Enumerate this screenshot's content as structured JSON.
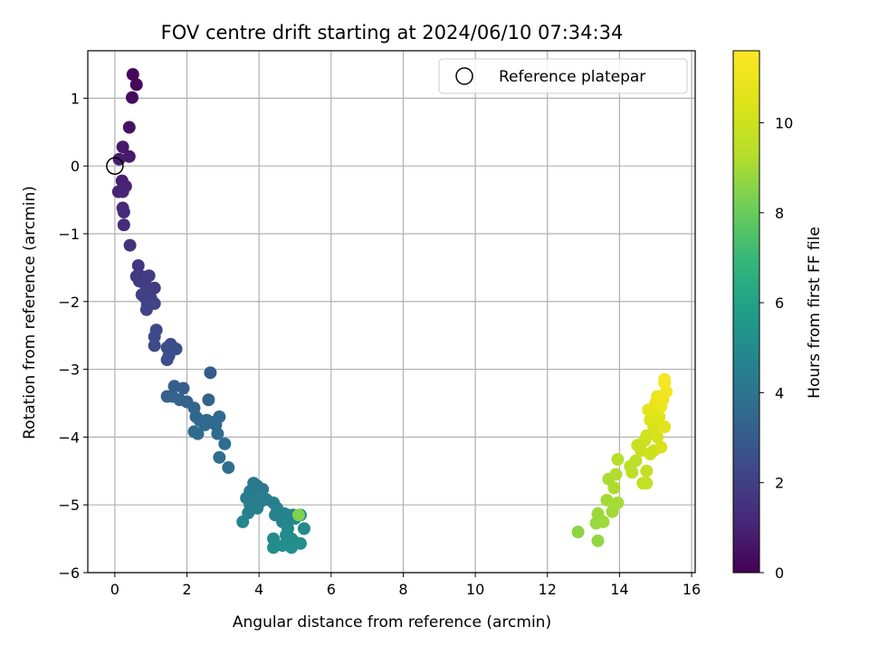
{
  "chart_data": {
    "type": "scatter",
    "title": "FOV centre drift starting at 2024/06/10 07:34:34",
    "xlabel": "Angular distance from reference (arcmin)",
    "ylabel": "Rotation from reference (arcmin)",
    "xlim": [
      -0.75,
      16.1
    ],
    "ylim": [
      -6,
      1.7
    ],
    "xticks": [
      0,
      2,
      4,
      6,
      8,
      10,
      12,
      14,
      16
    ],
    "yticks": [
      -6,
      -5,
      -4,
      -3,
      -2,
      -1,
      0,
      1
    ],
    "xtick_labels": [
      "0",
      "2",
      "4",
      "6",
      "8",
      "10",
      "12",
      "14",
      "16"
    ],
    "ytick_labels": [
      "−6",
      "−5",
      "−4",
      "−3",
      "−2",
      "−1",
      "0",
      "1"
    ],
    "grid": true,
    "legend": {
      "position": "top-right",
      "label": "Reference platepar",
      "marker": "open-circle"
    },
    "reference_point": {
      "x": 0,
      "y": 0
    },
    "colorbar": {
      "label": "Hours from first FF file",
      "colormap": "viridis",
      "range": [
        0,
        11.6
      ],
      "ticks": [
        0,
        2,
        4,
        6,
        8,
        10
      ],
      "tick_labels": [
        "0",
        "2",
        "4",
        "6",
        "8",
        "10"
      ]
    },
    "points_xyc": [
      [
        0.5,
        1.35,
        0.15
      ],
      [
        0.6,
        1.2,
        0.2
      ],
      [
        0.48,
        1.01,
        0.3
      ],
      [
        0.4,
        0.57,
        0.5
      ],
      [
        0.22,
        0.28,
        0.7
      ],
      [
        0.4,
        0.14,
        0.75
      ],
      [
        0.12,
        0.1,
        0.8
      ],
      [
        0.2,
        -0.22,
        0.9
      ],
      [
        0.3,
        -0.3,
        1.0
      ],
      [
        0.1,
        -0.38,
        1.05
      ],
      [
        0.22,
        -0.38,
        1.1
      ],
      [
        0.22,
        -0.62,
        1.15
      ],
      [
        0.25,
        -0.68,
        1.2
      ],
      [
        0.25,
        -0.87,
        1.3
      ],
      [
        0.42,
        -1.17,
        1.5
      ],
      [
        0.65,
        -1.47,
        1.7
      ],
      [
        0.6,
        -1.63,
        1.75
      ],
      [
        0.75,
        -1.63,
        1.8
      ],
      [
        0.68,
        -1.7,
        1.8
      ],
      [
        0.95,
        -1.62,
        1.85
      ],
      [
        0.85,
        -1.75,
        1.9
      ],
      [
        1.1,
        -1.8,
        1.9
      ],
      [
        0.9,
        -1.8,
        1.95
      ],
      [
        0.75,
        -1.9,
        2.0
      ],
      [
        0.85,
        -1.95,
        2.0
      ],
      [
        1.0,
        -1.95,
        2.05
      ],
      [
        0.9,
        -2.05,
        2.1
      ],
      [
        1.1,
        -2.03,
        2.1
      ],
      [
        0.88,
        -2.12,
        2.15
      ],
      [
        1.15,
        -2.42,
        2.3
      ],
      [
        1.1,
        -2.52,
        2.35
      ],
      [
        1.1,
        -2.65,
        2.4
      ],
      [
        1.55,
        -2.63,
        2.45
      ],
      [
        1.45,
        -2.68,
        2.45
      ],
      [
        1.7,
        -2.7,
        2.5
      ],
      [
        1.5,
        -2.8,
        2.55
      ],
      [
        1.45,
        -2.86,
        2.6
      ],
      [
        2.65,
        -3.05,
        3.0
      ],
      [
        1.65,
        -3.25,
        3.1
      ],
      [
        1.9,
        -3.28,
        3.1
      ],
      [
        2.0,
        -3.48,
        3.2
      ],
      [
        1.45,
        -3.4,
        3.2
      ],
      [
        1.6,
        -3.4,
        3.25
      ],
      [
        1.8,
        -3.45,
        3.25
      ],
      [
        2.6,
        -3.45,
        3.3
      ],
      [
        2.2,
        -3.57,
        3.35
      ],
      [
        2.25,
        -3.7,
        3.4
      ],
      [
        2.35,
        -3.75,
        3.45
      ],
      [
        2.55,
        -3.75,
        3.5
      ],
      [
        2.9,
        -3.7,
        3.5
      ],
      [
        2.65,
        -3.78,
        3.55
      ],
      [
        2.8,
        -3.82,
        3.55
      ],
      [
        2.5,
        -3.82,
        3.55
      ],
      [
        2.2,
        -3.92,
        3.6
      ],
      [
        2.3,
        -3.95,
        3.6
      ],
      [
        2.85,
        -3.95,
        3.6
      ],
      [
        3.05,
        -4.1,
        3.7
      ],
      [
        2.9,
        -4.3,
        3.75
      ],
      [
        3.15,
        -4.45,
        3.8
      ],
      [
        3.85,
        -4.68,
        4.2
      ],
      [
        3.95,
        -4.72,
        4.25
      ],
      [
        4.1,
        -4.77,
        4.25
      ],
      [
        3.75,
        -4.8,
        4.3
      ],
      [
        3.85,
        -4.82,
        4.3
      ],
      [
        3.65,
        -4.9,
        4.35
      ],
      [
        3.8,
        -4.92,
        4.35
      ],
      [
        4.05,
        -4.95,
        4.4
      ],
      [
        4.2,
        -4.92,
        4.4
      ],
      [
        3.9,
        -5.0,
        4.45
      ],
      [
        3.75,
        -5.0,
        4.45
      ],
      [
        4.4,
        -4.97,
        4.5
      ],
      [
        3.95,
        -5.05,
        4.5
      ],
      [
        4.5,
        -5.05,
        4.55
      ],
      [
        3.7,
        -5.12,
        4.55
      ],
      [
        4.45,
        -5.15,
        4.6
      ],
      [
        4.7,
        -5.13,
        4.6
      ],
      [
        4.8,
        -5.15,
        4.65
      ],
      [
        4.6,
        -5.18,
        4.65
      ],
      [
        4.65,
        -5.25,
        4.7
      ],
      [
        4.95,
        -5.15,
        4.7
      ],
      [
        5.0,
        -5.2,
        4.75
      ],
      [
        4.8,
        -5.25,
        4.75
      ],
      [
        3.55,
        -5.25,
        4.8
      ],
      [
        4.8,
        -5.35,
        4.85
      ],
      [
        5.15,
        -5.15,
        4.85
      ],
      [
        5.25,
        -5.35,
        4.9
      ],
      [
        4.4,
        -5.5,
        5.0
      ],
      [
        4.75,
        -5.45,
        5.0
      ],
      [
        4.9,
        -5.5,
        5.05
      ],
      [
        5.0,
        -5.55,
        5.1
      ],
      [
        4.4,
        -5.63,
        5.1
      ],
      [
        4.65,
        -5.6,
        5.15
      ],
      [
        4.9,
        -5.63,
        5.15
      ],
      [
        5.15,
        -5.57,
        5.2
      ],
      [
        5.1,
        -5.15,
        8.4
      ],
      [
        12.85,
        -5.4,
        8.6
      ],
      [
        13.4,
        -5.53,
        8.7
      ],
      [
        13.35,
        -5.27,
        8.8
      ],
      [
        13.4,
        -5.13,
        8.85
      ],
      [
        13.55,
        -5.25,
        8.9
      ],
      [
        13.8,
        -5.1,
        8.95
      ],
      [
        13.65,
        -4.93,
        9.0
      ],
      [
        13.95,
        -4.97,
        9.05
      ],
      [
        13.7,
        -4.62,
        9.1
      ],
      [
        13.85,
        -4.75,
        9.15
      ],
      [
        13.9,
        -4.55,
        9.2
      ],
      [
        13.95,
        -4.33,
        9.3
      ],
      [
        14.3,
        -4.43,
        9.45
      ],
      [
        14.35,
        -4.52,
        9.5
      ],
      [
        14.45,
        -4.35,
        9.55
      ],
      [
        14.65,
        -4.68,
        9.6
      ],
      [
        14.75,
        -4.68,
        9.65
      ],
      [
        14.75,
        -4.5,
        9.7
      ],
      [
        14.5,
        -4.12,
        9.8
      ],
      [
        14.6,
        -4.2,
        9.85
      ],
      [
        14.7,
        -4.05,
        9.9
      ],
      [
        14.85,
        -4.25,
        9.95
      ],
      [
        14.95,
        -4.2,
        10.0
      ],
      [
        14.75,
        -3.98,
        10.1
      ],
      [
        14.95,
        -3.85,
        10.2
      ],
      [
        15.05,
        -4.0,
        10.25
      ],
      [
        15.15,
        -4.15,
        10.3
      ],
      [
        14.85,
        -3.75,
        10.4
      ],
      [
        15.0,
        -3.65,
        10.5
      ],
      [
        15.1,
        -3.7,
        10.55
      ],
      [
        15.25,
        -3.85,
        10.6
      ],
      [
        14.8,
        -3.6,
        10.7
      ],
      [
        15.0,
        -3.5,
        10.8
      ],
      [
        15.15,
        -3.55,
        10.9
      ],
      [
        15.05,
        -3.4,
        11.0
      ],
      [
        15.2,
        -3.45,
        11.1
      ],
      [
        15.3,
        -3.33,
        11.2
      ],
      [
        15.25,
        -3.2,
        11.3
      ],
      [
        15.25,
        -3.15,
        11.4
      ]
    ]
  }
}
